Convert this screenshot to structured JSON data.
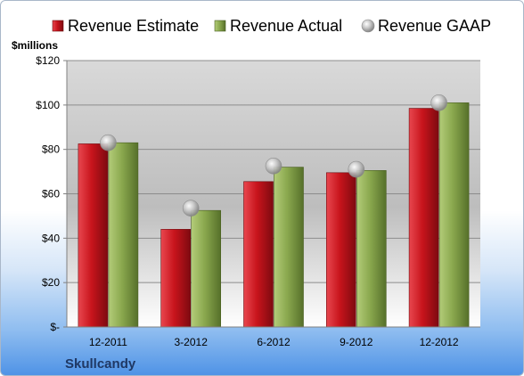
{
  "chart_data": {
    "type": "bar",
    "categories": [
      "12-2011",
      "3-2012",
      "6-2012",
      "9-2012",
      "12-2012"
    ],
    "series": [
      {
        "name": "Revenue Estimate",
        "kind": "bar",
        "color": "#c8141c",
        "values": [
          82.5,
          44,
          65.5,
          69.5,
          98.5
        ]
      },
      {
        "name": "Revenue Actual",
        "kind": "bar",
        "color": "#8aa84e",
        "values": [
          83,
          52.5,
          72,
          70.5,
          101
        ]
      },
      {
        "name": "Revenue GAAP",
        "kind": "marker",
        "color": "#b4b4b4",
        "values": [
          83,
          53.5,
          72.5,
          71,
          101
        ]
      }
    ],
    "ylabel": "$millions",
    "ylim": [
      0,
      120
    ],
    "yticks": [
      0,
      20,
      40,
      60,
      80,
      100,
      120
    ],
    "ytick_labels": [
      "$-",
      "$20",
      "$40",
      "$60",
      "$80",
      "$100",
      "$120"
    ],
    "legend_position": "top",
    "grid": true,
    "annotation": "Skullcandy"
  }
}
